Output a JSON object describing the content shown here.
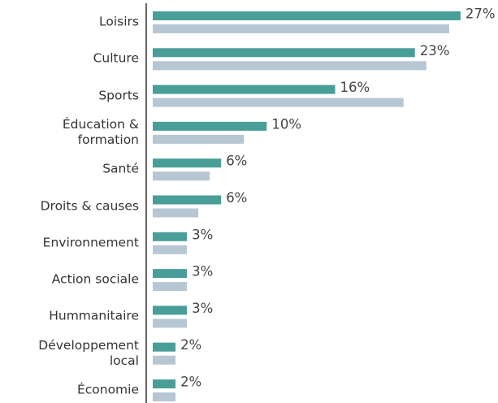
{
  "chart_data": {
    "type": "bar",
    "orientation": "horizontal",
    "categories": [
      "Loisirs",
      "Culture",
      "Sports",
      "Éducation & formation",
      "Santé",
      "Droits & causes",
      "Environnement",
      "Action sociale",
      "Hummanitaire",
      "Développement local",
      "Économie"
    ],
    "series": [
      {
        "color": "#4a9e98",
        "values": [
          27,
          23,
          16,
          10,
          6,
          6,
          3,
          3,
          3,
          2,
          2
        ],
        "value_labels": [
          "27%",
          "23%",
          "16%",
          "10%",
          "6%",
          "6%",
          "3%",
          "3%",
          "3%",
          "2%",
          "2%"
        ]
      },
      {
        "color": "#b6c7d3",
        "values": [
          26,
          24,
          22,
          8,
          5,
          4,
          3,
          3,
          3,
          2,
          2
        ]
      }
    ],
    "xlim": [
      0,
      30
    ]
  }
}
